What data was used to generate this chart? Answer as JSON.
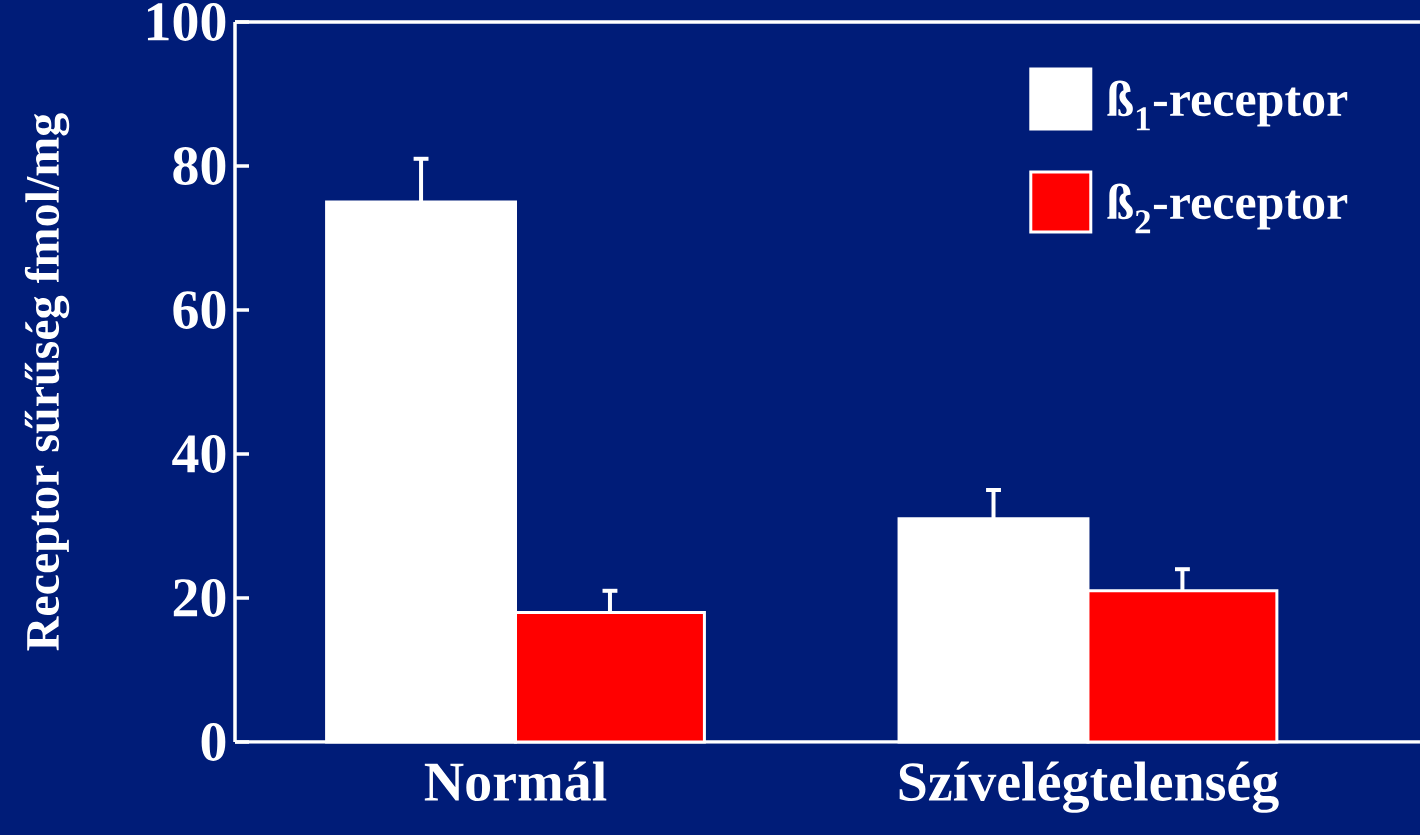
{
  "chart_data": {
    "type": "bar",
    "ylabel": "Receptor sűrűség fmol/mg",
    "categories": [
      "Normál",
      "Szívelégtelenség"
    ],
    "series": [
      {
        "name": "ß$_{1}$-receptor",
        "color": "#ffffff",
        "values": [
          75,
          31
        ],
        "errors": [
          [
            75,
            81
          ],
          [
            31,
            35
          ]
        ]
      },
      {
        "name": "ß$_{2}$-receptor",
        "color": "#ff0000",
        "values": [
          18,
          21
        ],
        "errors": [
          [
            18,
            21
          ],
          [
            21,
            24
          ]
        ]
      }
    ],
    "ylim": [
      0,
      100
    ],
    "yticks": [
      0,
      20,
      40,
      60,
      80,
      100
    ],
    "grid": false,
    "legend": "top right"
  }
}
